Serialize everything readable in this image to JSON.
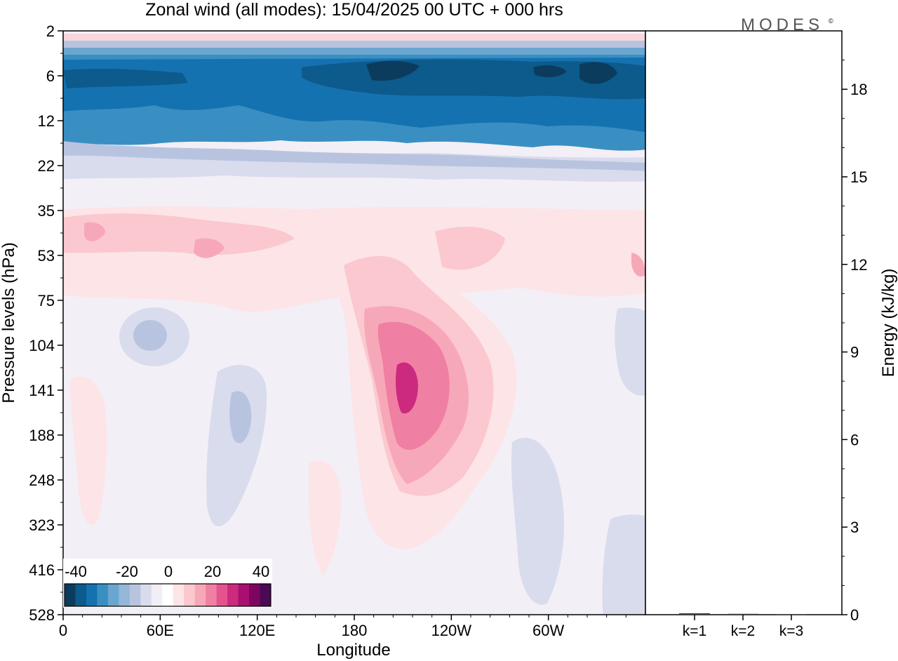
{
  "title": "Zonal wind (all modes):  15/04/2025  00 UTC  + 000 hrs",
  "brand": "MODES",
  "brand_mark": "©",
  "chart_data": [
    {
      "type": "heatmap",
      "title": "Zonal wind (all modes):  15/04/2025  00 UTC  + 000 hrs",
      "xlabel": "Longitude",
      "ylabel": "Pressure levels (hPa)",
      "x_ticks": [
        "0",
        "60E",
        "120E",
        "180",
        "120W",
        "60W"
      ],
      "y_ticks": [
        "2",
        "6",
        "12",
        "22",
        "35",
        "53",
        "75",
        "104",
        "141",
        "188",
        "248",
        "323",
        "416",
        "528"
      ],
      "colorbar": {
        "labels": [
          "-40",
          "-20",
          "0",
          "20",
          "40"
        ],
        "colors": [
          "#0b3c5d",
          "#0d5a8c",
          "#1572b0",
          "#3a8fc2",
          "#6aa6cf",
          "#95b7d8",
          "#b8c4df",
          "#d9dced",
          "#f1eef6",
          "#ffffff",
          "#fde4e6",
          "#fbc8cf",
          "#f7a8b8",
          "#f07fa4",
          "#e4538e",
          "#cc2a7e",
          "#a80f70",
          "#7d0560",
          "#4b0a55"
        ]
      },
      "layers": [
        {
          "level": "6",
          "value": -30
        },
        {
          "level": "12",
          "value": -25
        },
        {
          "level": "22",
          "value": -10
        },
        {
          "level": "53",
          "value": 10
        },
        {
          "level": "141",
          "value": 25
        }
      ]
    },
    {
      "type": "bar",
      "ylabel": "Energy (kJ/kg)",
      "categories": [
        "k=1",
        "k=2",
        "k=3"
      ],
      "values": [
        0.05,
        0.03,
        0.02
      ],
      "ylim": [
        0,
        20
      ],
      "y_ticks": [
        "0",
        "3",
        "6",
        "9",
        "12",
        "15",
        "18"
      ]
    }
  ]
}
